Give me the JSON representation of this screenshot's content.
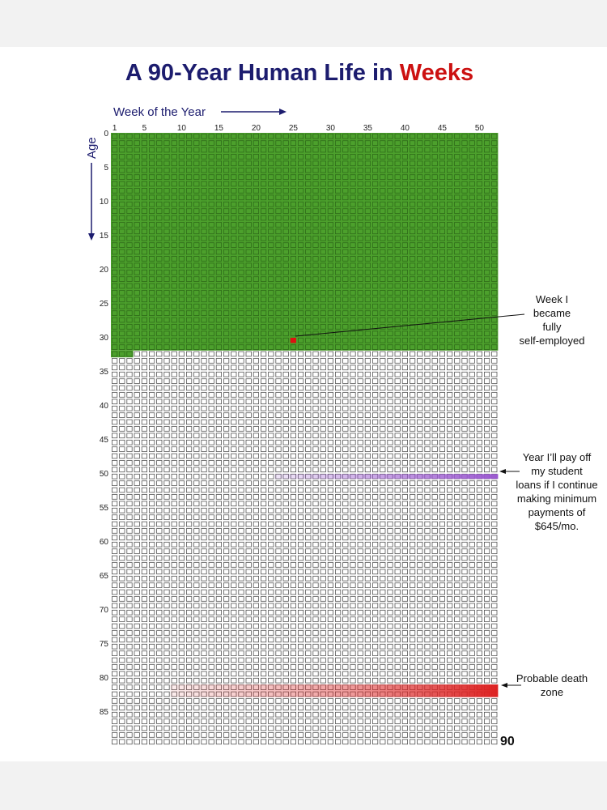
{
  "chart_data": {
    "type": "heatmap",
    "title": "A 90-Year Human Life in Weeks",
    "title_plain": "A 90-Year Human Life in ",
    "title_accent": "Weeks",
    "xlabel": "Week of the Year",
    "ylabel": "Age",
    "x_ticks": [
      1,
      5,
      10,
      15,
      20,
      25,
      30,
      35,
      40,
      45,
      50
    ],
    "y_ticks": [
      0,
      5,
      10,
      15,
      20,
      25,
      30,
      35,
      40,
      45,
      50,
      55,
      60,
      65,
      70,
      75,
      80,
      85
    ],
    "y_end_label": "90",
    "weeks_per_year": 52,
    "years": 90,
    "lived_years_full": 32,
    "lived_weeks_in_current_year": 3,
    "milestones": [
      {
        "label": "Week I became fully self-employed",
        "age": 30,
        "week": 25
      },
      {
        "label": "Year I’ll pay off my student loans if I continue making minimum payments of $645/mo.",
        "age": 50
      },
      {
        "label": "Probable death zone",
        "age_start": 81,
        "age_end": 82
      }
    ]
  },
  "annotations": {
    "self_employed_lines": [
      "Week I",
      "became",
      "fully",
      "self-employed"
    ],
    "loans_lines": [
      "Year I’ll pay off",
      "my student",
      "loans if I continue",
      "making minimum",
      "payments of",
      "$645/mo."
    ],
    "death_lines": [
      "Probable death",
      "zone"
    ]
  },
  "colors": {
    "lived": "#4ca02c",
    "lived_border": "#2f6b1a",
    "empty_border": "#555555",
    "milestone_dot": "#dd1111",
    "loans": "#9b59d0",
    "death": "#dd2222",
    "title": "#1c1c6e",
    "title_accent": "#cc1111"
  }
}
